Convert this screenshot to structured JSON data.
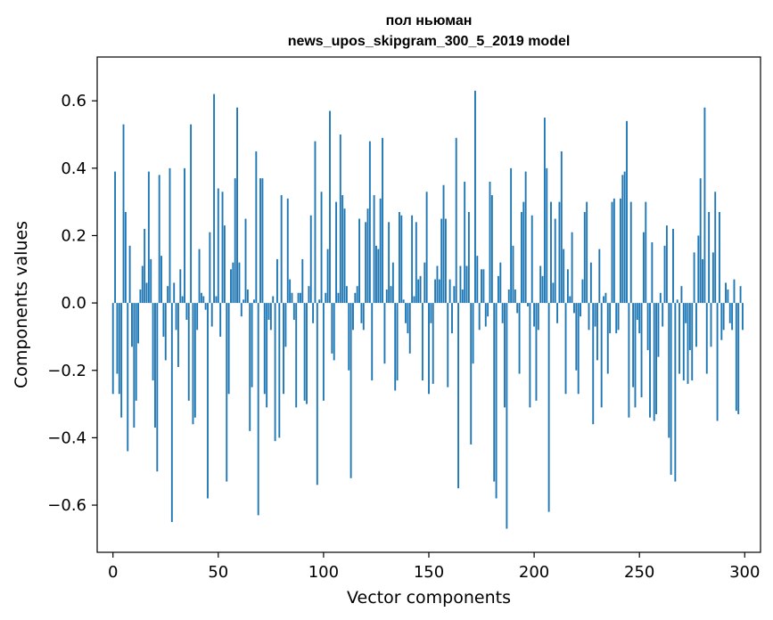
{
  "chart_data": {
    "type": "bar",
    "title": "пол ньюман",
    "subtitle": "news_upos_skipgram_300_5_2019 model",
    "xlabel": "Vector components",
    "ylabel": "Components values",
    "xlim": [
      -7.5,
      307.5
    ],
    "ylim": [
      -0.74,
      0.73
    ],
    "xticks": [
      0,
      50,
      100,
      150,
      200,
      250,
      300
    ],
    "xtick_labels": [
      "0",
      "50",
      "100",
      "150",
      "200",
      "250",
      "300"
    ],
    "yticks": [
      -0.6,
      -0.4,
      -0.2,
      0.0,
      0.2,
      0.4,
      0.6
    ],
    "ytick_labels": [
      "−0.6",
      "−0.4",
      "−0.2",
      "0.0",
      "0.2",
      "0.4",
      "0.6"
    ],
    "grid": false,
    "bar_color": "#1f77b4",
    "series": [
      {
        "values": [
          -0.27,
          0.39,
          -0.21,
          -0.27,
          -0.34,
          0.53,
          0.27,
          -0.44,
          0.17,
          -0.13,
          -0.37,
          -0.29,
          -0.12,
          0.04,
          0.11,
          0.22,
          0.06,
          0.39,
          0.13,
          -0.23,
          -0.37,
          -0.5,
          0.38,
          0.14,
          -0.1,
          -0.17,
          0.05,
          0.4,
          -0.65,
          0.06,
          -0.08,
          -0.19,
          0.1,
          0.02,
          0.4,
          -0.05,
          -0.29,
          0.53,
          -0.36,
          -0.34,
          -0.08,
          0.16,
          0.03,
          0.02,
          -0.02,
          -0.58,
          0.21,
          -0.07,
          0.62,
          0.02,
          0.34,
          -0.1,
          0.33,
          0.23,
          -0.53,
          -0.27,
          0.1,
          0.12,
          0.37,
          0.58,
          0.12,
          -0.04,
          0.01,
          0.25,
          0.04,
          -0.38,
          -0.25,
          0.01,
          0.45,
          -0.63,
          0.37,
          0.37,
          -0.27,
          -0.31,
          -0.05,
          -0.08,
          0.02,
          -0.41,
          0.13,
          -0.4,
          0.32,
          -0.27,
          -0.13,
          0.31,
          0.07,
          0.03,
          -0.05,
          -0.31,
          0.03,
          0.03,
          0.13,
          -0.29,
          -0.3,
          0.05,
          0.26,
          -0.06,
          0.48,
          -0.54,
          0.01,
          0.33,
          -0.29,
          0.03,
          0.16,
          0.57,
          -0.15,
          -0.17,
          0.3,
          0.03,
          0.5,
          0.32,
          0.28,
          0.05,
          -0.2,
          -0.52,
          -0.08,
          0.03,
          0.05,
          0.25,
          -0.06,
          -0.08,
          0.24,
          0.28,
          0.48,
          -0.23,
          0.32,
          0.17,
          0.16,
          0.31,
          0.49,
          -0.18,
          0.04,
          0.24,
          0.05,
          0.12,
          -0.26,
          -0.23,
          0.27,
          0.26,
          0.01,
          -0.06,
          -0.09,
          -0.15,
          0.26,
          0.02,
          0.24,
          0.07,
          0.08,
          -0.23,
          0.12,
          0.33,
          -0.27,
          -0.06,
          -0.24,
          0.07,
          0.11,
          0.07,
          0.25,
          0.35,
          0.25,
          -0.25,
          0.07,
          -0.09,
          0.05,
          0.49,
          -0.55,
          0.11,
          0.04,
          0.36,
          0.11,
          0.27,
          -0.42,
          -0.18,
          0.63,
          0.14,
          -0.08,
          0.1,
          0.1,
          -0.07,
          -0.04,
          0.36,
          0.32,
          -0.53,
          -0.58,
          0.08,
          0.12,
          -0.06,
          -0.31,
          -0.67,
          0.04,
          0.4,
          0.17,
          0.04,
          -0.03,
          -0.21,
          0.27,
          0.3,
          0.39,
          -0.01,
          -0.31,
          0.26,
          -0.07,
          -0.29,
          -0.08,
          0.11,
          0.08,
          0.55,
          0.4,
          -0.62,
          0.3,
          0.06,
          0.25,
          -0.06,
          0.3,
          0.45,
          0.16,
          -0.27,
          0.1,
          0.02,
          0.21,
          -0.03,
          -0.2,
          -0.27,
          -0.04,
          0.07,
          0.27,
          0.3,
          -0.08,
          0.12,
          -0.36,
          -0.07,
          -0.17,
          0.16,
          -0.31,
          0.02,
          0.03,
          -0.21,
          -0.09,
          0.3,
          0.31,
          -0.09,
          -0.08,
          0.31,
          0.38,
          0.39,
          0.54,
          -0.34,
          0.3,
          -0.25,
          -0.31,
          -0.05,
          -0.09,
          -0.28,
          0.21,
          0.3,
          -0.14,
          -0.34,
          0.18,
          -0.35,
          -0.33,
          -0.16,
          0.03,
          -0.07,
          0.17,
          0.23,
          -0.4,
          -0.51,
          0.22,
          -0.53,
          0.01,
          -0.21,
          0.05,
          -0.23,
          -0.06,
          -0.24,
          -0.14,
          -0.23,
          0.15,
          -0.13,
          0.2,
          0.37,
          0.13,
          0.58,
          -0.21,
          0.27,
          -0.13,
          0.15,
          0.33,
          -0.35,
          0.27,
          -0.11,
          -0.08,
          0.06,
          0.04,
          -0.06,
          -0.08,
          0.07,
          -0.32,
          -0.33,
          0.05,
          -0.08
        ]
      }
    ]
  }
}
